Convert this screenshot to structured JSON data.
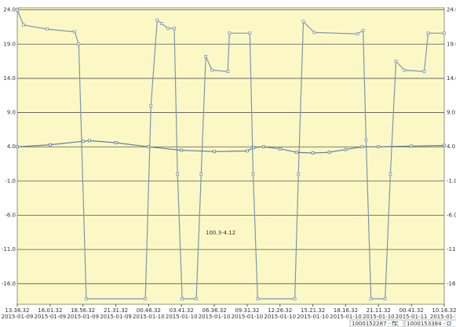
{
  "chart_data": {
    "type": "line",
    "annotation": "100.3-4.12",
    "xlim": [
      0,
      13
    ],
    "ylim": [
      -19,
      24.3
    ],
    "grid": true,
    "yticks": [
      {
        "value": 24,
        "label": "24.0"
      },
      {
        "value": 19,
        "label": "19.0"
      },
      {
        "value": 14,
        "label": "14.0"
      },
      {
        "value": 9,
        "label": "9.0"
      },
      {
        "value": 4,
        "label": "4.0"
      },
      {
        "value": -1,
        "label": "-1.0"
      },
      {
        "value": -6,
        "label": "-6.0"
      },
      {
        "value": -11,
        "label": "-11.0"
      },
      {
        "value": -16,
        "label": "-16.0"
      }
    ],
    "xticks": [
      {
        "value": 0,
        "label": [
          "13.36.32",
          "2015-01-09"
        ]
      },
      {
        "value": 1,
        "label": [
          "16.01.32",
          "2015-01-09"
        ]
      },
      {
        "value": 2,
        "label": [
          "18.56.32",
          "2015-01-09"
        ]
      },
      {
        "value": 3,
        "label": [
          "21.31.32",
          "2015-01-09"
        ]
      },
      {
        "value": 4,
        "label": [
          "00.46.32",
          "2015-01-10"
        ]
      },
      {
        "value": 5,
        "label": [
          "03.41.32",
          "2015-01-10"
        ]
      },
      {
        "value": 6,
        "label": [
          "06.36.32",
          "2015-01-10"
        ]
      },
      {
        "value": 7,
        "label": [
          "09.31.32",
          "2015-01-10"
        ]
      },
      {
        "value": 8,
        "label": [
          "12.26.32",
          "2015-01-10"
        ]
      },
      {
        "value": 9,
        "label": [
          "15.21.32",
          "2015-01-10"
        ]
      },
      {
        "value": 10,
        "label": [
          "18.16.32",
          "2015-01-10"
        ]
      },
      {
        "value": 11,
        "label": [
          "21.11.32",
          "2015-01-10"
        ]
      },
      {
        "value": 12,
        "label": [
          "00.41.32",
          "2015-01-11"
        ]
      },
      {
        "value": 13,
        "label": [
          "10.16.32",
          "2015-01-1"
        ]
      }
    ],
    "series": [
      {
        "name": "1000152287 - °C",
        "color": "#7a97ad",
        "x": [
          0,
          0.19,
          0.91,
          1.75,
          1.87,
          2.1,
          3.9,
          4.07,
          4.26,
          4.4,
          4.59,
          4.78,
          4.88,
          5.02,
          5.45,
          5.6,
          5.74,
          5.93,
          6.41,
          6.46,
          7.08,
          7.18,
          7.32,
          8.45,
          8.56,
          8.71,
          9.04,
          10.36,
          10.53,
          10.62,
          10.77,
          11.2,
          11.36,
          11.53,
          11.79,
          12.39,
          12.51,
          13.0
        ],
        "values": [
          24.0,
          21.8,
          21.2,
          20.8,
          19.0,
          -18.2,
          -18.2,
          10.0,
          22.5,
          22.0,
          21.3,
          21.3,
          0,
          -18.2,
          -18.2,
          0,
          17.2,
          15.2,
          15.0,
          20.6,
          20.6,
          0,
          -18.2,
          -18.2,
          0,
          22.3,
          20.7,
          20.5,
          21.0,
          5.0,
          -18.2,
          -18.2,
          0,
          16.5,
          15.2,
          15.0,
          20.6,
          20.6
        ]
      },
      {
        "name": "1000153384 - ",
        "color": "#5f7f99",
        "x": [
          0,
          1,
          2,
          2.2,
          3,
          4,
          5,
          6,
          7,
          7.2,
          7.5,
          8,
          8.5,
          9,
          9.5,
          10,
          10.5,
          11,
          12,
          13
        ],
        "values": [
          4.0,
          4.3,
          4.8,
          4.9,
          4.6,
          4.0,
          3.5,
          3.3,
          3.4,
          3.9,
          4.0,
          3.7,
          3.2,
          3.1,
          3.2,
          3.6,
          4.0,
          4.0,
          4.1,
          4.2
        ]
      }
    ]
  }
}
